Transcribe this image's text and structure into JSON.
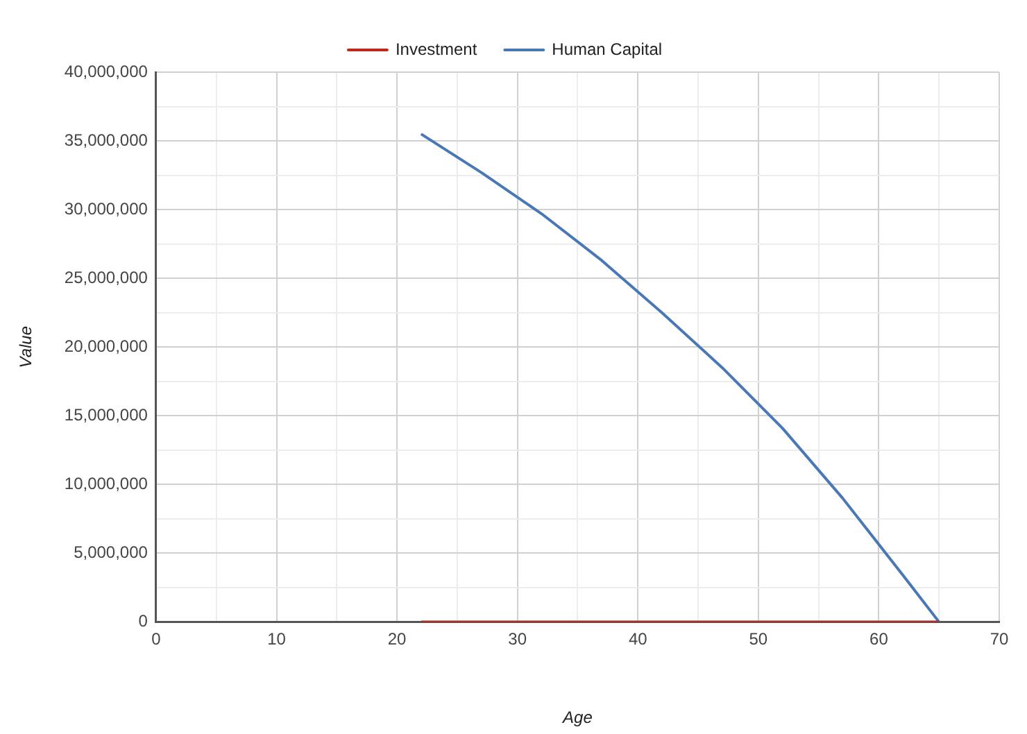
{
  "chart_data": {
    "type": "line",
    "xlabel": "Age",
    "ylabel": "Value",
    "xlim": [
      0,
      70
    ],
    "ylim": [
      0,
      40000000
    ],
    "xticks": [
      0,
      {
        "value": 5,
        "label": null
      },
      10,
      {
        "value": 15,
        "label": null
      },
      20,
      {
        "value": 25,
        "label": null
      },
      30,
      {
        "value": 35,
        "label": null
      },
      40,
      {
        "value": 45,
        "label": null
      },
      50,
      {
        "value": 55,
        "label": null
      },
      60,
      {
        "value": 65,
        "label": null
      },
      70
    ],
    "yticks": [
      {
        "value": 0,
        "label": "0"
      },
      {
        "value": 2500000,
        "label": null
      },
      {
        "value": 5000000,
        "label": "5,000,000"
      },
      {
        "value": 7500000,
        "label": null
      },
      {
        "value": 10000000,
        "label": "10,000,000"
      },
      {
        "value": 12500000,
        "label": null
      },
      {
        "value": 15000000,
        "label": "15,000,000"
      },
      {
        "value": 17500000,
        "label": null
      },
      {
        "value": 20000000,
        "label": "20,000,000"
      },
      {
        "value": 22500000,
        "label": null
      },
      {
        "value": 25000000,
        "label": "25,000,000"
      },
      {
        "value": 27500000,
        "label": null
      },
      {
        "value": 30000000,
        "label": "30,000,000"
      },
      {
        "value": 32500000,
        "label": null
      },
      {
        "value": 35000000,
        "label": "35,000,000"
      },
      {
        "value": 37500000,
        "label": null
      },
      {
        "value": 40000000,
        "label": "40,000,000"
      }
    ],
    "grid": true,
    "legend": "top",
    "marker": "none",
    "line_style": "solid",
    "series": [
      {
        "name": "Investment",
        "color": "#c0271b",
        "x": [
          22,
          27,
          32,
          37,
          42,
          47,
          52,
          57,
          62,
          65
        ],
        "values": [
          0,
          0,
          0,
          0,
          0,
          0,
          0,
          0,
          0,
          0
        ]
      },
      {
        "name": "Human Capital",
        "color": "#4a78b4",
        "x": [
          22,
          27,
          32,
          37,
          42,
          47,
          52,
          57,
          62,
          65
        ],
        "values": [
          35500000,
          32700000,
          29700000,
          26300000,
          22500000,
          18500000,
          14100000,
          9000000,
          3400000,
          0
        ]
      }
    ]
  }
}
